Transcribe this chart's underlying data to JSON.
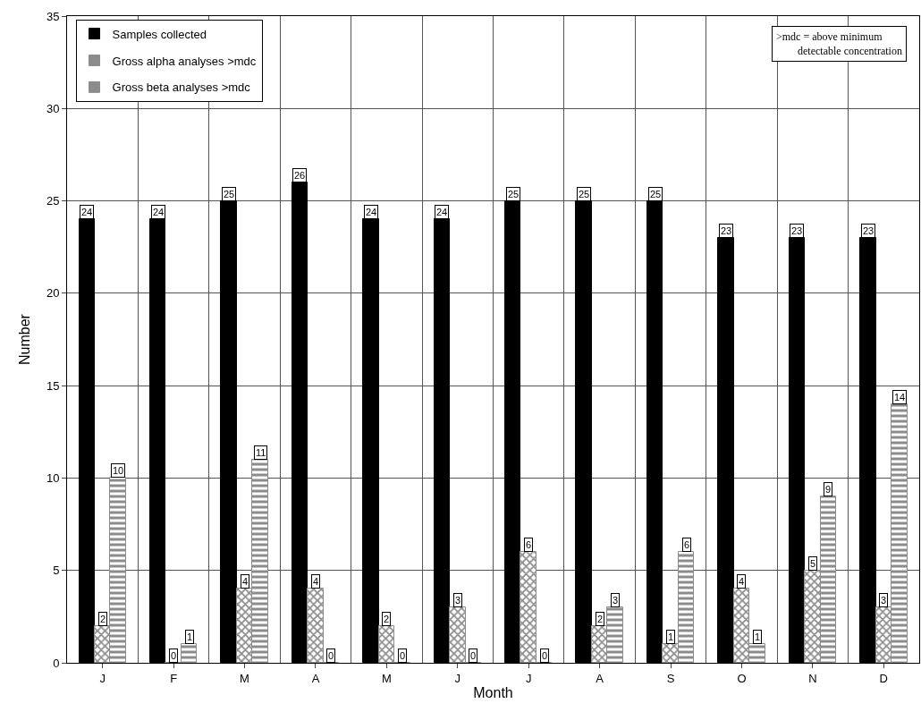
{
  "chart_data": {
    "type": "bar",
    "xlabel": "Month",
    "ylabel": "Number",
    "categories": [
      "J",
      "F",
      "M",
      "A",
      "M",
      "J",
      "J",
      "A",
      "S",
      "O",
      "N",
      "D"
    ],
    "series": [
      {
        "name": "Samples collected",
        "color": "#000000",
        "values": [
          24,
          24,
          25,
          26,
          24,
          24,
          25,
          25,
          25,
          23,
          23,
          23
        ]
      },
      {
        "name": "Gross alpha analyses >mdc",
        "color": "#8c8c8c",
        "values": [
          2,
          0,
          4,
          4,
          2,
          3,
          6,
          2,
          1,
          4,
          5,
          3
        ]
      },
      {
        "name": "Gross beta analyses >mdc",
        "color": "#8c8c8c",
        "values": [
          10,
          1,
          11,
          0,
          0,
          0,
          0,
          3,
          6,
          1,
          9,
          14
        ]
      }
    ],
    "ylim": [
      0,
      35
    ],
    "yticks": [
      0,
      5,
      10,
      15,
      20,
      25,
      30,
      35
    ],
    "grid": true,
    "legend": "top left",
    "data_labels": true,
    "annotations": [
      ">mdc = above minimum\n        detectable concentration"
    ]
  }
}
